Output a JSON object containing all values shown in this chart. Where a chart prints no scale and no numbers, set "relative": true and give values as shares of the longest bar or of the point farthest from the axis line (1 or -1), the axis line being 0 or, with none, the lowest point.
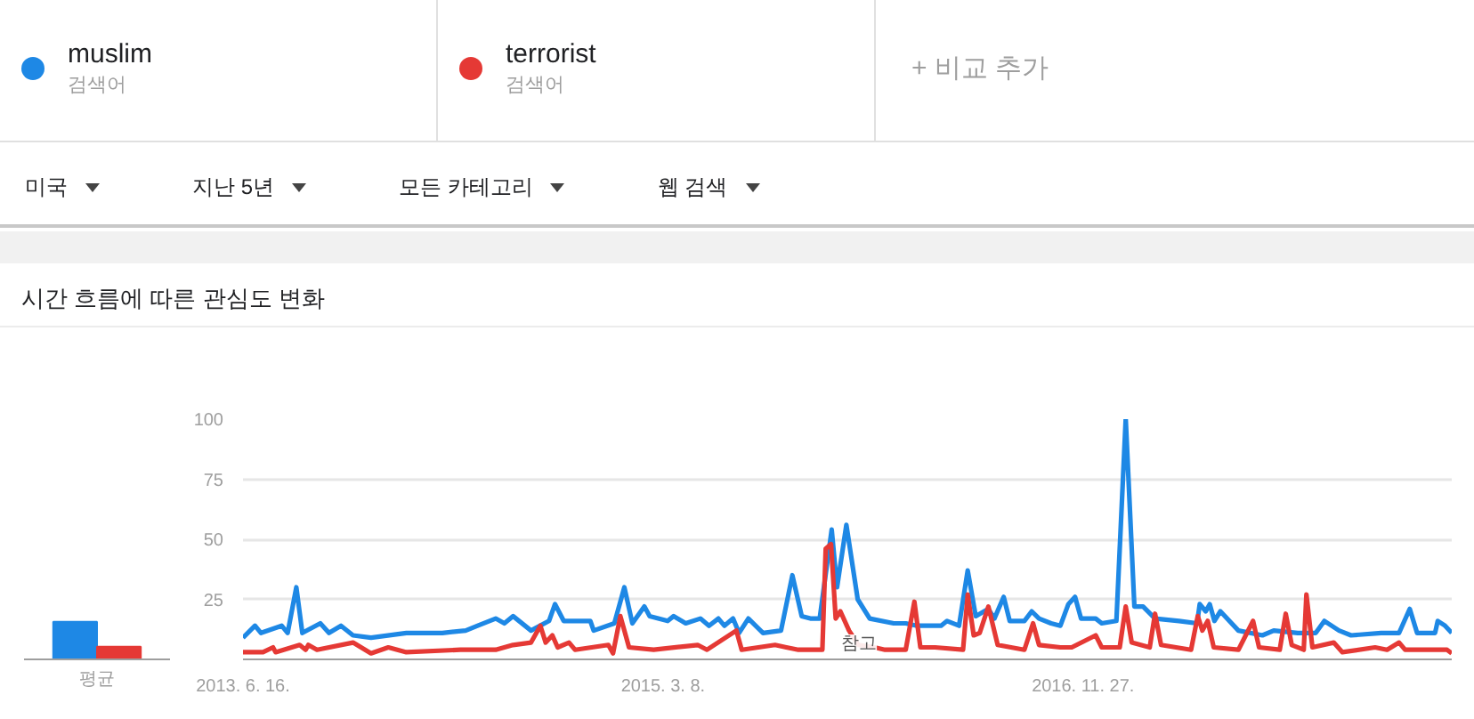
{
  "chart_data": [
    {
      "type": "bar",
      "relative": true,
      "categories": [
        null
      ],
      "xlabel": "평균",
      "series": [
        {
          "color": "#1e88e5",
          "values": [
            1
          ]
        },
        {
          "color": "#e53935",
          "values": [
            0.34
          ]
        }
      ]
    },
    {
      "type": "line",
      "title": "시간 흐름에 따른 관심도 변화",
      "legend": "top",
      "grid": "y",
      "line_style": "solid",
      "marker": "none",
      "xlim": [
        "2013-06-16",
        "2018-06-03"
      ],
      "ylim": [
        0,
        100
      ],
      "xticks": [
        {
          "value": "2013-06-16",
          "label": "2013. 6. 16."
        },
        {
          "value": "2015-03-08",
          "label": "2015. 3. 8."
        },
        {
          "value": "2016-11-27",
          "label": "2016. 11. 27."
        }
      ],
      "yticks": [
        25,
        50,
        75,
        100
      ],
      "annotations": [
        "검색어",
        "검색어",
        "+ 비교 추가",
        "미국",
        "지난 5년",
        "모든 카테고리",
        "웹 검색",
        {
          "text": "참고",
          "x": "2015-12-27",
          "y": 0
        }
      ],
      "series": [
        {
          "name": "muslim",
          "color": "#1e88e5",
          "x": [
            "2013-06-16",
            "2013-07-04",
            "2013-07-13",
            "2013-08-13",
            "2013-08-22",
            "2013-09-04",
            "2013-09-13",
            "2013-10-10",
            "2013-10-23",
            "2013-11-10",
            "2013-11-28",
            "2013-12-25",
            "2014-02-16",
            "2014-04-11",
            "2014-05-16",
            "2014-06-03",
            "2014-06-30",
            "2014-07-13",
            "2014-07-26",
            "2014-08-22",
            "2014-09-18",
            "2014-09-27",
            "2014-10-10",
            "2014-11-19",
            "2014-11-24",
            "2014-12-25",
            "2015-01-09",
            "2015-01-21",
            "2015-02-08",
            "2015-02-16",
            "2015-03-15",
            "2015-03-24",
            "2015-04-11",
            "2015-05-03",
            "2015-05-16",
            "2015-05-30",
            "2015-06-08",
            "2015-06-21",
            "2015-06-30",
            "2015-07-14",
            "2015-08-05",
            "2015-09-01",
            "2015-09-18",
            "2015-10-02",
            "2015-10-15",
            "2015-10-29",
            "2015-11-16",
            "2015-11-24",
            "2015-12-08",
            "2015-12-25",
            "2016-01-12",
            "2016-02-17",
            "2016-03-06",
            "2016-03-23",
            "2016-04-28",
            "2016-05-07",
            "2016-05-25",
            "2016-06-07",
            "2016-06-19",
            "2016-07-08",
            "2016-07-17",
            "2016-07-31",
            "2016-08-09",
            "2016-08-31",
            "2016-09-11",
            "2016-09-22",
            "2016-10-10",
            "2016-10-24",
            "2016-11-05",
            "2016-11-15",
            "2016-11-24",
            "2016-12-16",
            "2016-12-25",
            "2017-01-16",
            "2017-01-30",
            "2017-02-12",
            "2017-02-25",
            "2017-03-15",
            "2017-04-20",
            "2017-05-17",
            "2017-05-21",
            "2017-05-30",
            "2017-06-05",
            "2017-06-12",
            "2017-06-21",
            "2017-07-18",
            "2017-08-23",
            "2017-09-09",
            "2017-10-15",
            "2017-11-11",
            "2017-11-24",
            "2017-12-16",
            "2018-01-03",
            "2018-02-17",
            "2018-03-16",
            "2018-04-01",
            "2018-04-12",
            "2018-05-09",
            "2018-05-13",
            "2018-05-24",
            "2018-06-03"
          ],
          "values": [
            9,
            14,
            11,
            14,
            11,
            30,
            11,
            15,
            11,
            14,
            10,
            9,
            11,
            11,
            12,
            14,
            17,
            15,
            18,
            12,
            16,
            23,
            16,
            16,
            12,
            15,
            30,
            15,
            22,
            18,
            16,
            18,
            15,
            17,
            14,
            17,
            14,
            17,
            11,
            17,
            11,
            12,
            35,
            18,
            17,
            17,
            54,
            30,
            56,
            25,
            17,
            15,
            15,
            14,
            14,
            16,
            14,
            37,
            18,
            21,
            17,
            26,
            16,
            16,
            20,
            17,
            15,
            14,
            23,
            26,
            17,
            17,
            15,
            16,
            100,
            22,
            22,
            17,
            16,
            15,
            23,
            20,
            23,
            16,
            20,
            12,
            10,
            12,
            11,
            11,
            16,
            12,
            10,
            11,
            11,
            21,
            11,
            11,
            16,
            14,
            11
          ]
        },
        {
          "name": "terrorist",
          "color": "#e53935",
          "x": [
            "2013-06-16",
            "2013-07-16",
            "2013-07-31",
            "2013-08-04",
            "2013-09-09",
            "2013-09-18",
            "2013-09-22",
            "2013-10-05",
            "2013-11-28",
            "2013-12-25",
            "2014-01-20",
            "2014-02-16",
            "2014-05-08",
            "2014-06-30",
            "2014-07-26",
            "2014-08-22",
            "2014-09-05",
            "2014-09-13",
            "2014-09-23",
            "2014-10-01",
            "2014-10-18",
            "2014-10-27",
            "2014-12-16",
            "2014-12-23",
            "2015-01-03",
            "2015-01-16",
            "2015-02-22",
            "2015-04-29",
            "2015-05-13",
            "2015-06-26",
            "2015-07-04",
            "2015-08-23",
            "2015-09-09",
            "2015-09-27",
            "2015-11-02",
            "2015-11-07",
            "2015-11-15",
            "2015-11-22",
            "2015-11-29",
            "2015-12-12",
            "2015-12-26",
            "2016-01-19",
            "2016-02-04",
            "2016-03-06",
            "2016-03-19",
            "2016-03-28",
            "2016-04-19",
            "2016-05-31",
            "2016-06-07",
            "2016-06-16",
            "2016-06-25",
            "2016-07-08",
            "2016-07-22",
            "2016-08-31",
            "2016-09-13",
            "2016-09-22",
            "2016-10-24",
            "2016-11-10",
            "2016-12-16",
            "2016-12-25",
            "2017-01-21",
            "2017-01-30",
            "2017-02-08",
            "2017-03-07",
            "2017-03-15",
            "2017-03-24",
            "2017-05-08",
            "2017-05-18",
            "2017-05-25",
            "2017-06-02",
            "2017-06-11",
            "2017-07-18",
            "2017-08-09",
            "2017-08-18",
            "2017-09-18",
            "2017-09-27",
            "2017-10-06",
            "2017-10-24",
            "2017-10-28",
            "2017-11-06",
            "2017-12-08",
            "2017-12-21",
            "2018-02-08",
            "2018-02-26",
            "2018-03-16",
            "2018-03-25",
            "2018-05-27",
            "2018-06-03"
          ],
          "values": [
            3,
            3,
            5,
            3,
            6,
            4,
            6,
            4,
            7,
            2.5,
            5,
            3,
            4,
            4,
            6,
            7,
            14,
            7,
            10,
            5,
            7,
            4,
            6,
            2.5,
            18,
            5,
            4,
            6,
            4,
            12,
            4,
            6,
            5,
            4,
            4,
            46,
            48,
            17,
            20,
            12,
            6,
            5,
            4,
            4,
            24,
            5,
            5,
            4,
            27,
            10,
            11,
            22,
            6,
            4,
            15,
            6,
            5,
            5,
            10,
            5,
            5,
            22,
            7,
            5,
            19,
            6,
            4,
            18,
            12,
            16,
            5,
            4,
            16,
            5,
            4,
            19,
            6,
            4,
            27,
            5,
            7,
            3,
            5,
            4,
            7,
            4,
            4,
            2.5
          ]
        }
      ]
    }
  ]
}
